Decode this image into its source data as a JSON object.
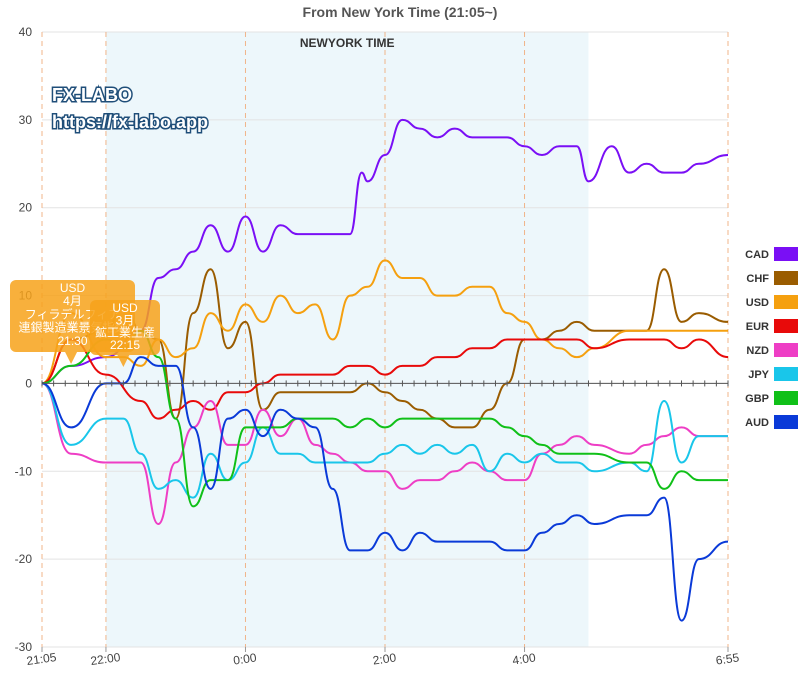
{
  "chart_data": {
    "type": "line",
    "title": "From New York Time  (21:05~)",
    "band_label": "NEWYORK TIME",
    "xlabel": "",
    "ylabel": "",
    "ylim": [
      -30,
      40
    ],
    "yticks": [
      -30,
      -20,
      -10,
      0,
      10,
      20,
      30,
      40
    ],
    "xlim": [
      "21:05",
      "6:55"
    ],
    "xticks": [
      {
        "label": "21:05",
        "t": "21:05"
      },
      {
        "label": "22:00",
        "t": "22:00"
      },
      {
        "label": "0:00",
        "t": "0:00"
      },
      {
        "label": "2:00",
        "t": "2:00"
      },
      {
        "label": "4:00",
        "t": "4:00"
      },
      {
        "label": "6:55",
        "t": "6:55"
      }
    ],
    "newyork_band": [
      "22:00",
      "4:55"
    ],
    "grid": true,
    "legend_position": "right",
    "watermark": [
      "FX-LABO",
      "https://fx-labo.app"
    ],
    "annotations": [
      {
        "lines": [
          "USD",
          "4月",
          "フィラデルフィア",
          "連銀製造業景気指数",
          "21:30"
        ],
        "time": "21:30"
      },
      {
        "lines": [
          "USD",
          "3月",
          "鉱工業生産",
          "22:15"
        ],
        "time": "22:15"
      }
    ],
    "series": [
      {
        "name": "CAD",
        "color": "#7a0ff5",
        "x": [
          "21:05",
          "21:30",
          "22:00",
          "22:30",
          "22:45",
          "23:00",
          "23:15",
          "23:30",
          "23:45",
          "0:00",
          "0:15",
          "0:30",
          "0:45",
          "1:00",
          "1:15",
          "1:30",
          "1:40",
          "1:45",
          "2:00",
          "2:15",
          "2:30",
          "2:45",
          "3:00",
          "3:15",
          "3:30",
          "3:45",
          "4:00",
          "4:15",
          "4:30",
          "4:45",
          "4:55",
          "5:15",
          "5:30",
          "5:45",
          "6:00",
          "6:15",
          "6:30",
          "6:55"
        ],
        "values": [
          0,
          2,
          3,
          6,
          12,
          13,
          15,
          18,
          15,
          19,
          15,
          18,
          17,
          17,
          17,
          17,
          24,
          23,
          26,
          30,
          29,
          28,
          29,
          28,
          28,
          28,
          27,
          26,
          27,
          27,
          23,
          27,
          24,
          25,
          24,
          24,
          25,
          26
        ]
      },
      {
        "name": "CHF",
        "color": "#9a5c00",
        "x": [
          "21:05",
          "21:30",
          "22:00",
          "22:15",
          "22:30",
          "22:45",
          "23:00",
          "23:15",
          "23:30",
          "23:45",
          "0:00",
          "0:15",
          "0:30",
          "0:45",
          "1:00",
          "1:15",
          "1:30",
          "1:45",
          "2:00",
          "2:15",
          "2:30",
          "2:45",
          "3:00",
          "3:15",
          "3:30",
          "3:45",
          "4:00",
          "4:15",
          "4:30",
          "4:45",
          "5:00",
          "5:30",
          "5:45",
          "6:00",
          "6:15",
          "6:30",
          "6:55"
        ],
        "values": [
          0,
          5,
          6,
          9,
          6,
          5,
          -4,
          8,
          13,
          4,
          7,
          -3,
          -1,
          -1,
          -1,
          -1,
          -1,
          0,
          -1,
          -2,
          -3,
          -4,
          -5,
          -5,
          -3,
          0,
          5,
          5,
          6,
          7,
          6,
          6,
          6,
          13,
          7,
          8,
          7
        ]
      },
      {
        "name": "USD",
        "color": "#f5a00f",
        "x": [
          "21:05",
          "21:30",
          "22:00",
          "22:15",
          "22:30",
          "22:45",
          "23:00",
          "23:15",
          "23:30",
          "23:45",
          "0:00",
          "0:15",
          "0:30",
          "0:45",
          "1:00",
          "1:15",
          "1:30",
          "1:45",
          "2:00",
          "2:15",
          "2:30",
          "2:45",
          "3:00",
          "3:15",
          "3:30",
          "3:45",
          "4:00",
          "4:15",
          "4:30",
          "4:45",
          "5:00",
          "5:30",
          "5:45",
          "6:00",
          "6:15",
          "6:30",
          "6:55"
        ],
        "values": [
          0,
          8,
          3,
          3,
          2,
          5,
          3,
          4,
          8,
          6,
          9,
          7,
          10,
          8,
          9,
          5,
          10,
          11,
          14,
          12,
          12,
          10,
          10,
          11,
          11,
          8,
          7,
          5,
          4,
          3,
          4,
          6,
          6,
          6,
          6,
          6,
          6
        ]
      },
      {
        "name": "EUR",
        "color": "#e80a0a",
        "x": [
          "21:05",
          "21:30",
          "22:00",
          "22:30",
          "22:45",
          "23:00",
          "23:15",
          "23:30",
          "23:45",
          "0:00",
          "0:15",
          "0:30",
          "0:45",
          "1:00",
          "1:15",
          "1:30",
          "1:45",
          "2:00",
          "2:15",
          "2:30",
          "2:45",
          "3:00",
          "3:15",
          "3:30",
          "3:45",
          "4:00",
          "4:15",
          "4:30",
          "4:45",
          "5:00",
          "5:30",
          "5:45",
          "6:00",
          "6:15",
          "6:30",
          "6:55"
        ],
        "values": [
          0,
          5,
          1,
          -2,
          -4,
          -3,
          -2,
          -3,
          -1,
          -1,
          0,
          1,
          1,
          1,
          1,
          2,
          2,
          1,
          2,
          2,
          3,
          3,
          4,
          4,
          5,
          5,
          5,
          5,
          5,
          4,
          5,
          5,
          5,
          4,
          5,
          3
        ]
      },
      {
        "name": "NZD",
        "color": "#ee3ec5",
        "x": [
          "21:05",
          "21:30",
          "22:00",
          "22:30",
          "22:45",
          "23:00",
          "23:15",
          "23:30",
          "23:45",
          "0:00",
          "0:15",
          "0:30",
          "0:45",
          "1:00",
          "1:15",
          "1:30",
          "1:45",
          "2:00",
          "2:15",
          "2:30",
          "2:45",
          "3:00",
          "3:15",
          "3:30",
          "3:45",
          "4:00",
          "4:15",
          "4:30",
          "4:45",
          "5:00",
          "5:30",
          "5:45",
          "6:00",
          "6:15",
          "6:30",
          "6:55"
        ],
        "values": [
          0,
          -8,
          -9,
          -9,
          -16,
          -9,
          -5,
          -2,
          -7,
          -7,
          -3,
          -6,
          -4,
          -7,
          -8,
          -9,
          -10,
          -10,
          -12,
          -11,
          -11,
          -10,
          -9,
          -10,
          -11,
          -11,
          -8,
          -7,
          -6,
          -7,
          -8,
          -7,
          -6,
          -5,
          -6,
          -6
        ]
      },
      {
        "name": "JPY",
        "color": "#19c6ea",
        "x": [
          "21:05",
          "21:30",
          "22:00",
          "22:15",
          "22:30",
          "22:45",
          "23:00",
          "23:15",
          "23:30",
          "23:45",
          "0:00",
          "0:15",
          "0:30",
          "0:45",
          "1:00",
          "1:15",
          "1:30",
          "1:45",
          "2:00",
          "2:15",
          "2:30",
          "2:45",
          "3:00",
          "3:15",
          "3:30",
          "3:45",
          "4:00",
          "4:15",
          "4:30",
          "4:45",
          "5:00",
          "5:30",
          "5:45",
          "6:00",
          "6:15",
          "6:30",
          "6:55"
        ],
        "values": [
          0,
          -7,
          -4,
          -4,
          -8,
          -12,
          -11,
          -13,
          -8,
          -11,
          -9,
          -5,
          -8,
          -8,
          -9,
          -9,
          -9,
          -9,
          -8,
          -7,
          -8,
          -7,
          -8,
          -7,
          -10,
          -8,
          -9,
          -8,
          -9,
          -9,
          -10,
          -9,
          -10,
          -2,
          -9,
          -6,
          -6
        ]
      },
      {
        "name": "GBP",
        "color": "#10c018",
        "x": [
          "21:05",
          "21:30",
          "22:00",
          "22:15",
          "22:30",
          "22:45",
          "23:00",
          "23:15",
          "23:30",
          "23:45",
          "0:00",
          "0:15",
          "0:30",
          "0:45",
          "1:00",
          "1:15",
          "1:30",
          "1:45",
          "2:00",
          "2:15",
          "2:30",
          "2:45",
          "3:00",
          "3:15",
          "3:30",
          "3:45",
          "4:00",
          "4:15",
          "4:30",
          "4:45",
          "5:00",
          "5:30",
          "5:45",
          "6:00",
          "6:15",
          "6:30",
          "6:55"
        ],
        "values": [
          0,
          2,
          5,
          4,
          6,
          3,
          -4,
          -14,
          -11,
          -11,
          -5,
          -5,
          -5,
          -4,
          -4,
          -4,
          -5,
          -4,
          -5,
          -4,
          -4,
          -4,
          -4,
          -4,
          -4,
          -5,
          -6,
          -7,
          -8,
          -8,
          -8,
          -9,
          -9,
          -12,
          -10,
          -11,
          -11
        ]
      },
      {
        "name": "AUD",
        "color": "#0a3ad8",
        "x": [
          "21:05",
          "21:30",
          "22:00",
          "22:15",
          "22:30",
          "22:45",
          "23:00",
          "23:15",
          "23:30",
          "23:45",
          "0:00",
          "0:15",
          "0:30",
          "0:45",
          "1:00",
          "1:15",
          "1:30",
          "1:45",
          "2:00",
          "2:15",
          "2:30",
          "2:45",
          "3:00",
          "3:15",
          "3:30",
          "3:45",
          "4:00",
          "4:15",
          "4:30",
          "4:45",
          "5:00",
          "5:30",
          "5:45",
          "6:00",
          "6:15",
          "6:30",
          "6:55"
        ],
        "values": [
          0,
          -5,
          0,
          0,
          3,
          2,
          2,
          -5,
          -12,
          -4,
          -3,
          -6,
          -3,
          -4,
          -5,
          -12,
          -19,
          -19,
          -17,
          -19,
          -17,
          -18,
          -18,
          -18,
          -18,
          -19,
          -19,
          -17,
          -16,
          -15,
          -16,
          -15,
          -15,
          -13,
          -27,
          -20,
          -18
        ]
      }
    ]
  }
}
